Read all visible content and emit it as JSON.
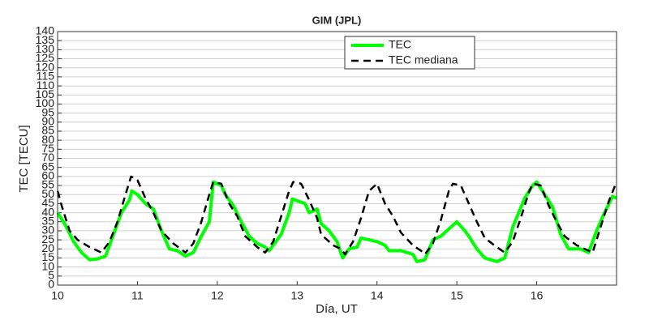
{
  "chart_data": {
    "type": "line",
    "title": "GIM (JPL)",
    "xlabel": "Día, UT",
    "ylabel": "TEC [TECU]",
    "xlim": [
      10,
      17
    ],
    "xticks": [
      10,
      11,
      12,
      13,
      14,
      15,
      16
    ],
    "ylim": [
      0,
      140
    ],
    "yticks": [
      0,
      5,
      10,
      15,
      20,
      25,
      30,
      35,
      40,
      45,
      50,
      55,
      60,
      65,
      70,
      75,
      80,
      85,
      90,
      95,
      100,
      105,
      110,
      115,
      120,
      125,
      130,
      135,
      140
    ],
    "grid": true,
    "legend": "upper right",
    "series": [
      {
        "name": "TEC",
        "color": "#00ff00",
        "dash": "solid",
        "x": [
          10.0,
          10.1,
          10.2,
          10.3,
          10.4,
          10.5,
          10.6,
          10.7,
          10.8,
          10.9,
          10.93,
          11.0,
          11.1,
          11.2,
          11.3,
          11.4,
          11.5,
          11.6,
          11.7,
          11.8,
          11.9,
          11.95,
          12.05,
          12.1,
          12.2,
          12.3,
          12.4,
          12.5,
          12.6,
          12.65,
          12.8,
          12.9,
          12.94,
          13.1,
          13.15,
          13.25,
          13.3,
          13.4,
          13.5,
          13.57,
          13.65,
          13.75,
          13.8,
          13.9,
          14.0,
          14.1,
          14.15,
          14.3,
          14.45,
          14.5,
          14.6,
          14.7,
          14.8,
          14.9,
          15.0,
          15.1,
          15.15,
          15.25,
          15.35,
          15.5,
          15.6,
          15.7,
          15.85,
          15.95,
          16.0,
          16.1,
          16.2,
          16.3,
          16.4,
          16.55,
          16.65,
          16.75,
          16.85,
          16.95,
          17.0
        ],
        "values": [
          40,
          33,
          24,
          18,
          14,
          14.5,
          16,
          28,
          40,
          47,
          52,
          50,
          45,
          42,
          30,
          20,
          19,
          16,
          18,
          27,
          35,
          57,
          55,
          50,
          44,
          35,
          27,
          23,
          21,
          19,
          28,
          40,
          47.5,
          45,
          40,
          42,
          34,
          30,
          24,
          15,
          20,
          21,
          26,
          25,
          24,
          22,
          19,
          19,
          17,
          13,
          14,
          25,
          27,
          31,
          35,
          30,
          27,
          20,
          15,
          13,
          15,
          32,
          48,
          55,
          57,
          50,
          43,
          28,
          20,
          20,
          18,
          30,
          40,
          49,
          48
        ]
      },
      {
        "name": "TEC mediana",
        "color": "#000000",
        "dash": "dashed",
        "x": [
          10.0,
          10.05,
          10.15,
          10.25,
          10.4,
          10.55,
          10.65,
          10.75,
          10.85,
          10.92,
          11.0,
          11.1,
          11.2,
          11.3,
          11.45,
          11.6,
          11.7,
          11.8,
          11.9,
          11.95,
          12.05,
          12.15,
          12.25,
          12.35,
          12.5,
          12.6,
          12.7,
          12.8,
          12.9,
          12.95,
          13.05,
          13.15,
          13.25,
          13.3,
          13.45,
          13.55,
          13.6,
          13.7,
          13.8,
          13.9,
          14.0,
          14.1,
          14.2,
          14.3,
          14.45,
          14.55,
          14.6,
          14.7,
          14.8,
          14.9,
          14.95,
          15.05,
          15.15,
          15.25,
          15.35,
          15.5,
          15.6,
          15.7,
          15.8,
          15.9,
          15.95,
          16.05,
          16.15,
          16.25,
          16.35,
          16.5,
          16.65,
          16.7,
          16.8,
          16.9,
          17.0
        ],
        "values": [
          52,
          44,
          30,
          25,
          21,
          18,
          24,
          35,
          50,
          60,
          58,
          48,
          40,
          30,
          23,
          18,
          23,
          35,
          50,
          57,
          56,
          45,
          38,
          27,
          21,
          18,
          24,
          38,
          52,
          57,
          56,
          47,
          37,
          28,
          22,
          20,
          17,
          24,
          37,
          52,
          56,
          45,
          38,
          29,
          22,
          19,
          17,
          23,
          36,
          52,
          56,
          55,
          45,
          35,
          26,
          21,
          18,
          24,
          37,
          51,
          56,
          55,
          44,
          35,
          27,
          22,
          19,
          18,
          32,
          46,
          57
        ]
      }
    ]
  }
}
